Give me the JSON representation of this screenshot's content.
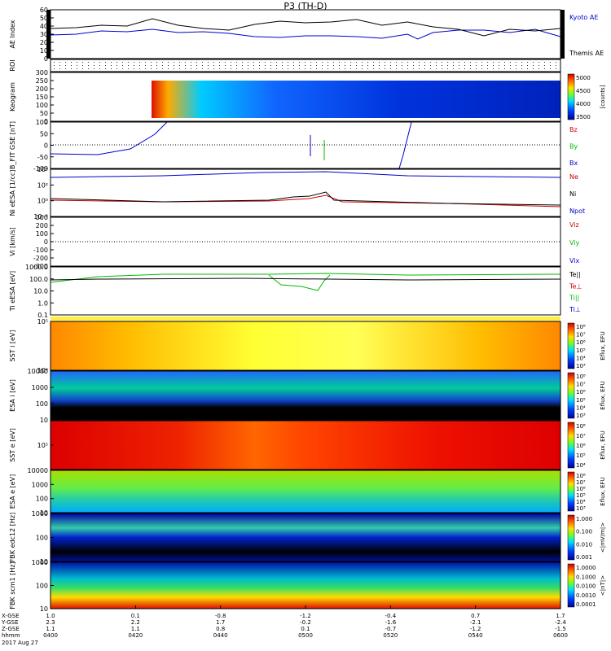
{
  "title": "P3 (TH-D)",
  "date_label": "2017 Aug 27",
  "colors": {
    "red": "#cc0000",
    "green": "#00bb00",
    "blue": "#0000cc",
    "black": "#000000"
  },
  "chart_data": [
    {
      "type": "line",
      "ylabel": "AE Index",
      "ylim": [
        0,
        60
      ],
      "yticks": [
        "60",
        "50",
        "40",
        "30",
        "20",
        "10",
        "0"
      ],
      "legend": [
        {
          "label": "Kyoto AE",
          "color": "#0000cc"
        },
        {
          "label": "Themis AE",
          "color": "#000000"
        }
      ],
      "series": [
        {
          "name": "Kyoto AE",
          "color": "#0000cc",
          "x": [
            0,
            0.05,
            0.1,
            0.15,
            0.2,
            0.25,
            0.3,
            0.35,
            0.4,
            0.45,
            0.5,
            0.55,
            0.6,
            0.65,
            0.7,
            0.72,
            0.75,
            0.8,
            0.85,
            0.9,
            0.95,
            1.0
          ],
          "y": [
            29,
            30,
            34,
            33,
            36,
            32,
            33,
            31,
            27,
            26,
            28,
            28,
            27,
            25,
            30,
            24,
            32,
            35,
            35,
            32,
            36,
            27
          ]
        },
        {
          "name": "Themis AE",
          "color": "#000000",
          "x": [
            0,
            0.05,
            0.1,
            0.15,
            0.2,
            0.25,
            0.3,
            0.35,
            0.4,
            0.45,
            0.5,
            0.55,
            0.6,
            0.65,
            0.7,
            0.75,
            0.8,
            0.85,
            0.9,
            0.95,
            1.0
          ],
          "y": [
            37,
            38,
            41,
            40,
            49,
            41,
            37,
            35,
            42,
            46,
            44,
            45,
            48,
            41,
            45,
            39,
            36,
            28,
            36,
            34,
            37
          ]
        }
      ]
    },
    {
      "type": "heatmap",
      "ylabel": "ROI",
      "yticks": []
    },
    {
      "type": "heatmap",
      "ylabel": "Keogram",
      "ylim": [
        0,
        300
      ],
      "yticks": [
        "300",
        "250",
        "200",
        "150",
        "100",
        "50",
        "0"
      ],
      "colorbar": {
        "label": "[counts]",
        "ticks": [
          "5000",
          "4500",
          "4000",
          "3500"
        ]
      }
    },
    {
      "type": "line",
      "ylabel": "B_FIT GSE [nT]",
      "ylim": [
        -100,
        100
      ],
      "yticks": [
        "100",
        "50",
        "0",
        "-50",
        "-100"
      ],
      "legend": [
        {
          "label": "Bz",
          "color": "#cc0000"
        },
        {
          "label": "By",
          "color": "#00bb00"
        },
        {
          "label": "Bx",
          "color": "#0000cc"
        }
      ]
    },
    {
      "type": "line",
      "ylabel": "Ni eESA [1/cc]",
      "ylim": [
        0.01,
        100000
      ],
      "yticks": [
        "10⁴",
        "10²",
        "10⁰",
        "10⁻²"
      ],
      "legend": [
        {
          "label": "Ne",
          "color": "#cc0000"
        },
        {
          "label": "Ni",
          "color": "#000000"
        },
        {
          "label": "Npot",
          "color": "#0000cc"
        }
      ]
    },
    {
      "type": "line",
      "ylabel": "Vi [km/s]",
      "ylim": [
        -300,
        300
      ],
      "yticks": [
        "300",
        "200",
        "100",
        "0",
        "-100",
        "-200",
        "-300"
      ],
      "legend": [
        {
          "label": "Viz",
          "color": "#cc0000"
        },
        {
          "label": "Viy",
          "color": "#00bb00"
        },
        {
          "label": "Vix",
          "color": "#0000cc"
        }
      ]
    },
    {
      "type": "line",
      "ylabel": "Ti eESA [eV]",
      "ylim": [
        0.1,
        10000
      ],
      "yticks": [
        "1000.0",
        "100.0",
        "10.0",
        "1.0",
        "0.1"
      ],
      "legend": [
        {
          "label": "Te||",
          "color": "#000000"
        },
        {
          "label": "Te⊥",
          "color": "#cc0000"
        },
        {
          "label": "Ti||",
          "color": "#00bb00"
        },
        {
          "label": "Ti⊥",
          "color": "#0000cc"
        }
      ]
    },
    {
      "type": "heatmap",
      "ylabel": "SST i [eV]",
      "yticks": [
        "10⁵",
        "10⁴"
      ],
      "colorbar": {
        "label": "Eflux, EFU",
        "ticks": [
          "10⁸",
          "10⁷",
          "10⁶",
          "10⁵",
          "10⁴",
          "10³"
        ]
      }
    },
    {
      "type": "heatmap",
      "ylabel": "ESA i [eV]",
      "yticks": [
        "10000",
        "1000",
        "100",
        "10"
      ],
      "colorbar": {
        "label": "Eflux, EFU",
        "ticks": [
          "10⁸",
          "10⁷",
          "10⁶",
          "10⁵",
          "10⁴",
          "10³"
        ]
      }
    },
    {
      "type": "heatmap",
      "ylabel": "SST e [eV]",
      "yticks": [
        "10⁵"
      ],
      "colorbar": {
        "label": "Eflux, EFU",
        "ticks": [
          "10⁸",
          "10⁷",
          "10⁶",
          "10⁵",
          "10⁴"
        ]
      }
    },
    {
      "type": "heatmap",
      "ylabel": "ESA e [eV]",
      "yticks": [
        "10000",
        "1000",
        "100",
        "10"
      ],
      "colorbar": {
        "label": "Eflux, EFU",
        "ticks": [
          "10⁸",
          "10⁷",
          "10⁶",
          "10⁵",
          "10⁴",
          "10³"
        ]
      }
    },
    {
      "type": "heatmap",
      "ylabel": "FBK edc12 [Hz]",
      "yticks": [
        "1000",
        "100",
        "10"
      ],
      "colorbar": {
        "label": "<|mV/m|>",
        "ticks": [
          "1.000",
          "0.100",
          "0.010",
          "0.001"
        ]
      }
    },
    {
      "type": "heatmap",
      "ylabel": "FBK scm1 [Hz]",
      "yticks": [
        "1000",
        "100",
        "10"
      ],
      "colorbar": {
        "label": "<|nT|>",
        "ticks": [
          "1.0000",
          "0.1000",
          "0.0100",
          "0.0010",
          "0.0001"
        ]
      }
    }
  ],
  "xaxis": {
    "row_labels": [
      "X-GSE",
      "Y-GSE",
      "Z-GSE",
      "hhmm"
    ],
    "columns": [
      {
        "vals": [
          "1.0",
          "2.3",
          "1.1",
          "0400"
        ]
      },
      {
        "vals": [
          "0.1",
          "2.2",
          "1.1",
          "0420"
        ]
      },
      {
        "vals": [
          "-0.8",
          "1.7",
          "0.8",
          "0440"
        ]
      },
      {
        "vals": [
          "-1.2",
          "-0.2",
          "0.1",
          "0500"
        ]
      },
      {
        "vals": [
          "-0.4",
          "-1.6",
          "-0.7",
          "0520"
        ]
      },
      {
        "vals": [
          "0.7",
          "-2.1",
          "-1.2",
          "0540"
        ]
      },
      {
        "vals": [
          "1.7",
          "-2.4",
          "-1.5",
          "0600"
        ]
      }
    ]
  }
}
